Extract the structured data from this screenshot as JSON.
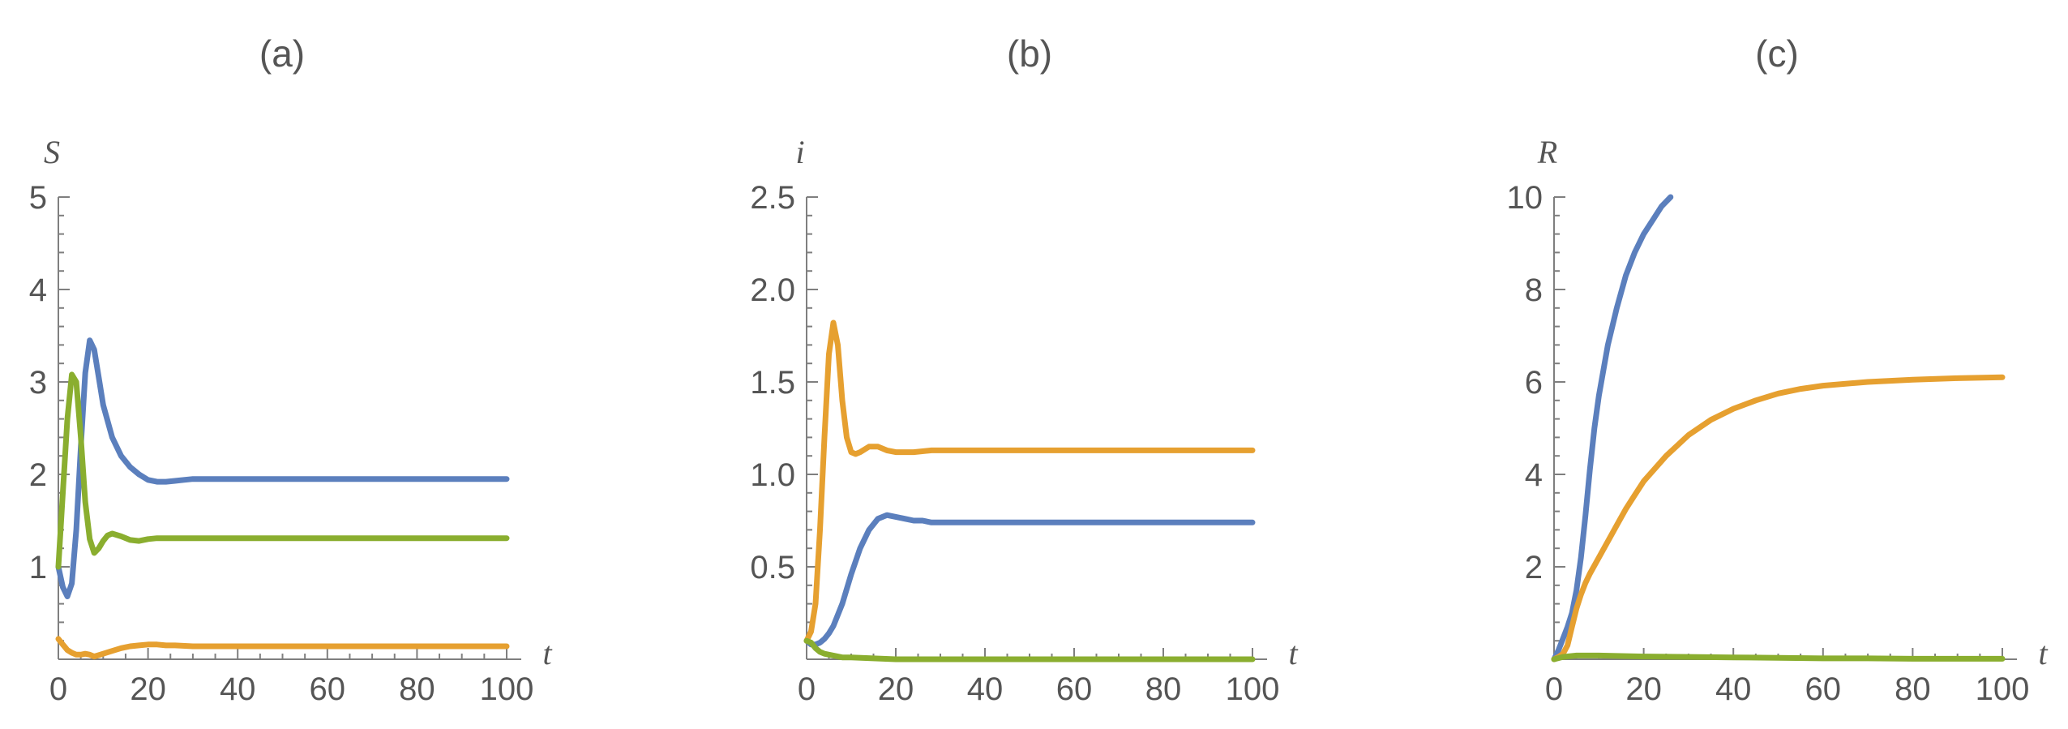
{
  "chart_data": [
    {
      "type": "line",
      "title": "(a)",
      "xlabel": "t",
      "ylabel": "S",
      "xlim": [
        0,
        100
      ],
      "ylim": [
        0,
        5
      ],
      "xticks": [
        0,
        20,
        40,
        60,
        80,
        100
      ],
      "yticks": [
        1,
        2,
        3,
        4,
        5
      ],
      "series": [
        {
          "color": "#5b7fbd",
          "x": [
            0,
            1,
            2,
            3,
            4,
            5,
            6,
            7,
            8,
            9,
            10,
            12,
            14,
            16,
            18,
            20,
            22,
            24,
            26,
            28,
            30,
            35,
            40,
            50,
            60,
            70,
            80,
            90,
            100
          ],
          "y": [
            1.0,
            0.78,
            0.68,
            0.82,
            1.4,
            2.3,
            3.1,
            3.45,
            3.35,
            3.05,
            2.75,
            2.4,
            2.2,
            2.08,
            2.0,
            1.94,
            1.92,
            1.92,
            1.93,
            1.94,
            1.95,
            1.95,
            1.95,
            1.95,
            1.95,
            1.95,
            1.95,
            1.95,
            1.95
          ]
        },
        {
          "color": "#e6a030",
          "x": [
            0,
            1,
            2,
            3,
            4,
            5,
            6,
            7,
            8,
            10,
            12,
            14,
            16,
            18,
            20,
            22,
            24,
            26,
            30,
            35,
            40,
            50,
            60,
            70,
            80,
            90,
            100
          ],
          "y": [
            0.22,
            0.16,
            0.1,
            0.07,
            0.05,
            0.05,
            0.06,
            0.05,
            0.03,
            0.06,
            0.09,
            0.12,
            0.14,
            0.15,
            0.16,
            0.16,
            0.15,
            0.15,
            0.14,
            0.14,
            0.14,
            0.14,
            0.14,
            0.14,
            0.14,
            0.14,
            0.14
          ]
        },
        {
          "color": "#8aae2f",
          "x": [
            0,
            1,
            2,
            3,
            4,
            5,
            6,
            7,
            8,
            9,
            10,
            11,
            12,
            14,
            16,
            18,
            20,
            22,
            25,
            30,
            40,
            50,
            60,
            70,
            80,
            90,
            100
          ],
          "y": [
            1.0,
            1.8,
            2.6,
            3.08,
            3.0,
            2.4,
            1.7,
            1.3,
            1.15,
            1.2,
            1.28,
            1.34,
            1.36,
            1.33,
            1.29,
            1.28,
            1.3,
            1.31,
            1.31,
            1.31,
            1.31,
            1.31,
            1.31,
            1.31,
            1.31,
            1.31,
            1.31
          ]
        }
      ]
    },
    {
      "type": "line",
      "title": "(b)",
      "xlabel": "t",
      "ylabel": "i",
      "xlim": [
        0,
        100
      ],
      "ylim": [
        0,
        2.5
      ],
      "xticks": [
        0,
        20,
        40,
        60,
        80,
        100
      ],
      "yticks": [
        0.5,
        1.0,
        1.5,
        2.0,
        2.5
      ],
      "ytick_labels": [
        "0.5",
        "1.0",
        "1.5",
        "2.0",
        "2.5"
      ],
      "series": [
        {
          "color": "#5b7fbd",
          "x": [
            0,
            1,
            2,
            3,
            4,
            5,
            6,
            8,
            10,
            12,
            14,
            16,
            18,
            20,
            22,
            24,
            26,
            28,
            30,
            35,
            40,
            50,
            60,
            70,
            80,
            90,
            100
          ],
          "y": [
            0.1,
            0.08,
            0.08,
            0.09,
            0.11,
            0.14,
            0.18,
            0.3,
            0.46,
            0.6,
            0.7,
            0.76,
            0.78,
            0.77,
            0.76,
            0.75,
            0.75,
            0.74,
            0.74,
            0.74,
            0.74,
            0.74,
            0.74,
            0.74,
            0.74,
            0.74,
            0.74
          ]
        },
        {
          "color": "#e6a030",
          "x": [
            0,
            1,
            2,
            3,
            4,
            5,
            6,
            7,
            8,
            9,
            10,
            11,
            12,
            14,
            16,
            18,
            20,
            22,
            24,
            28,
            30,
            40,
            50,
            60,
            70,
            80,
            90,
            100
          ],
          "y": [
            0.1,
            0.15,
            0.3,
            0.7,
            1.2,
            1.65,
            1.82,
            1.7,
            1.4,
            1.2,
            1.12,
            1.11,
            1.12,
            1.15,
            1.15,
            1.13,
            1.12,
            1.12,
            1.12,
            1.13,
            1.13,
            1.13,
            1.13,
            1.13,
            1.13,
            1.13,
            1.13,
            1.13
          ]
        },
        {
          "color": "#8aae2f",
          "x": [
            0,
            1,
            2,
            3,
            4,
            6,
            8,
            10,
            15,
            20,
            30,
            40,
            50,
            60,
            70,
            80,
            90,
            100
          ],
          "y": [
            0.1,
            0.09,
            0.06,
            0.04,
            0.03,
            0.02,
            0.01,
            0.01,
            0.005,
            0.0,
            0.0,
            0.0,
            0.0,
            0.0,
            0.0,
            0.0,
            0.0,
            0.0
          ]
        }
      ]
    },
    {
      "type": "line",
      "title": "(c)",
      "xlabel": "t",
      "ylabel": "R",
      "xlim": [
        0,
        100
      ],
      "ylim": [
        0,
        10
      ],
      "xticks": [
        0,
        20,
        40,
        60,
        80,
        100
      ],
      "yticks": [
        2,
        4,
        6,
        8,
        10
      ],
      "series": [
        {
          "color": "#5b7fbd",
          "x": [
            0,
            1,
            2,
            3,
            4,
            5,
            6,
            7,
            8,
            9,
            10,
            12,
            14,
            16,
            18,
            20,
            22,
            24,
            26
          ],
          "y": [
            0.0,
            0.2,
            0.45,
            0.7,
            1.0,
            1.5,
            2.2,
            3.1,
            4.1,
            5.0,
            5.7,
            6.8,
            7.6,
            8.3,
            8.8,
            9.2,
            9.5,
            9.8,
            10.0
          ]
        },
        {
          "color": "#e6a030",
          "x": [
            0,
            1,
            2,
            3,
            4,
            5,
            6,
            7,
            8,
            10,
            12,
            14,
            16,
            18,
            20,
            25,
            30,
            35,
            40,
            45,
            50,
            55,
            60,
            70,
            80,
            90,
            100
          ],
          "y": [
            0.0,
            0.05,
            0.12,
            0.3,
            0.7,
            1.1,
            1.4,
            1.65,
            1.85,
            2.2,
            2.55,
            2.9,
            3.25,
            3.55,
            3.85,
            4.4,
            4.85,
            5.18,
            5.42,
            5.6,
            5.75,
            5.85,
            5.92,
            6.0,
            6.05,
            6.08,
            6.1
          ]
        },
        {
          "color": "#8aae2f",
          "x": [
            0,
            2,
            5,
            10,
            20,
            30,
            40,
            50,
            60,
            70,
            80,
            90,
            100
          ],
          "y": [
            0.0,
            0.05,
            0.08,
            0.08,
            0.06,
            0.05,
            0.04,
            0.03,
            0.02,
            0.02,
            0.01,
            0.01,
            0.01
          ]
        }
      ]
    }
  ]
}
